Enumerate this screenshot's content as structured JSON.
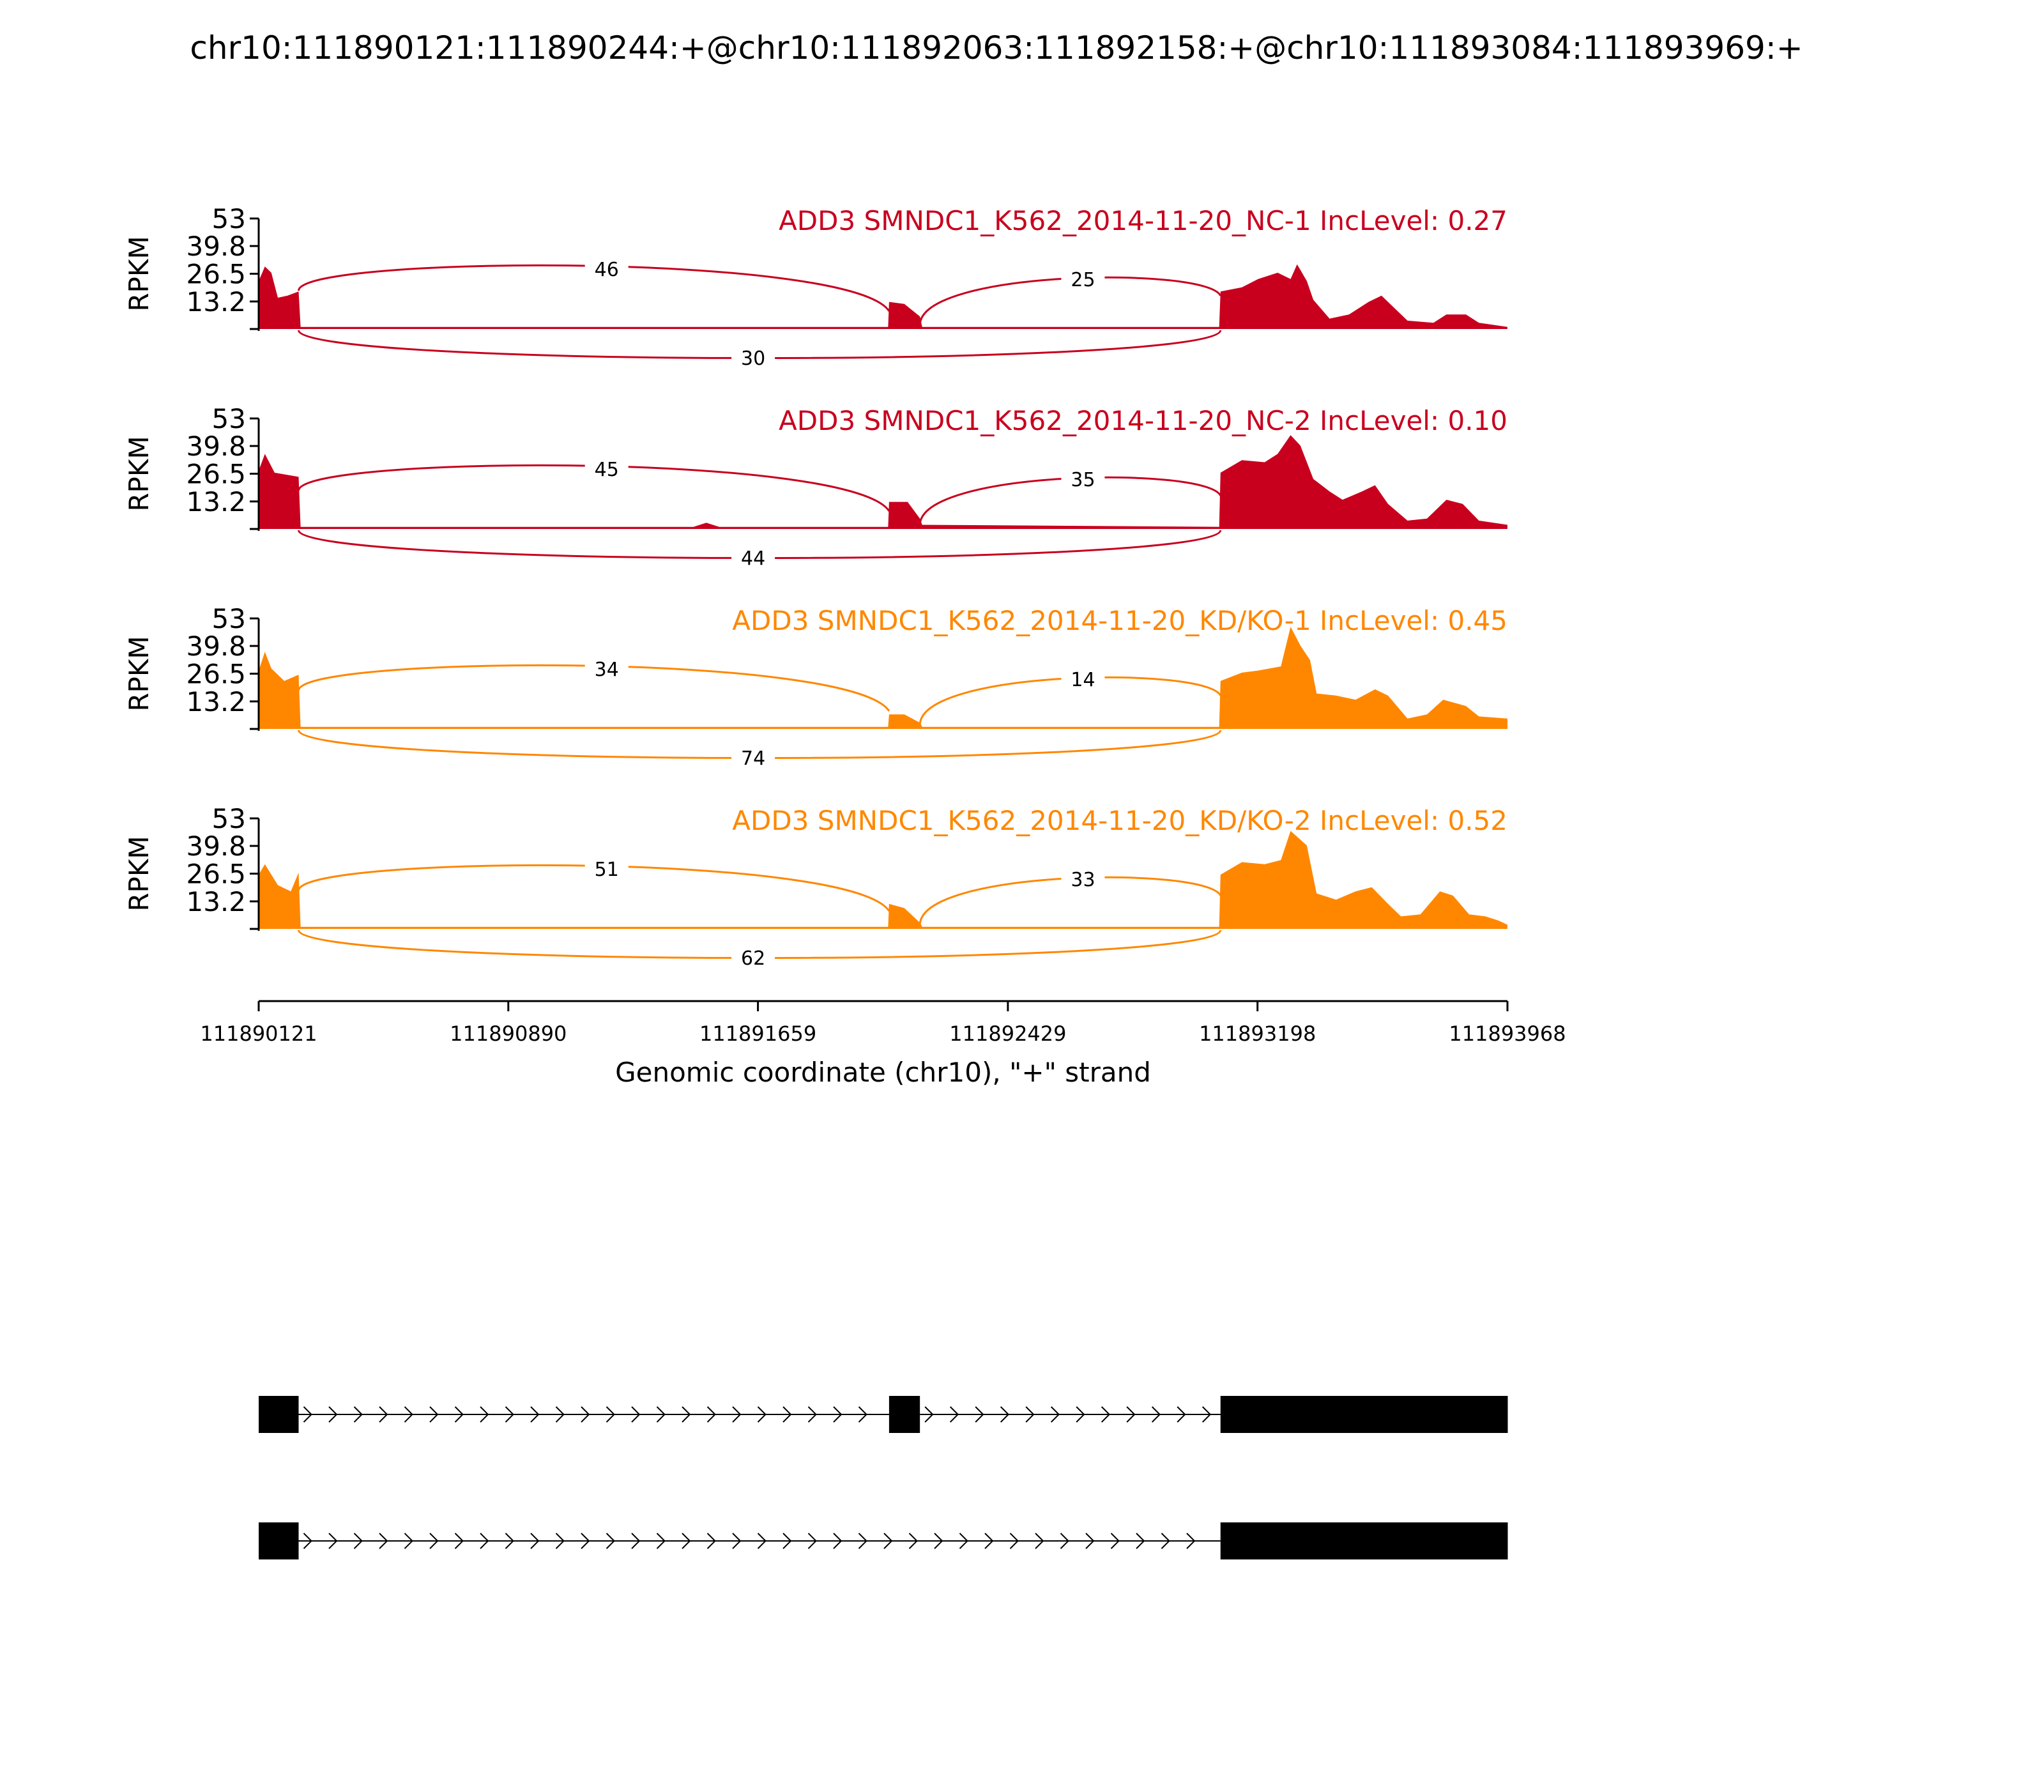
{
  "title": "chr10:111890121:111890244:+@chr10:111892063:111892158:+@chr10:111893084:111893969:+",
  "chart_data": {
    "type": "area",
    "x_axis": {
      "label": "Genomic coordinate (chr10), \"+\" strand",
      "range": [
        111890121,
        111893968
      ],
      "ticks": [
        111890121,
        111890890,
        111891659,
        111892429,
        111893198,
        111893968
      ],
      "tick_labels": [
        "111890121",
        "111890890",
        "111891659",
        "111892429",
        "111893198",
        "111893968"
      ]
    },
    "y_axis": {
      "label": "RPKM",
      "range": [
        0,
        53
      ],
      "ticks": [
        13.2,
        26.5,
        39.8,
        53
      ],
      "tick_labels": [
        "13.2",
        "26.5",
        "39.8",
        "53"
      ]
    },
    "exons": [
      {
        "start": 111890121,
        "end": 111890244
      },
      {
        "start": 111892063,
        "end": 111892158
      },
      {
        "start": 111893084,
        "end": 111893969
      }
    ],
    "panels": [
      {
        "name": "ADD3 SMNDC1_K562_2014-11-20_NC-1 IncLevel: 0.27",
        "color": "#c8001e",
        "junctions": {
          "upstream": "46",
          "downstream": "25",
          "skip": "30"
        },
        "coverage": [
          [
            111890121,
            23
          ],
          [
            111890140,
            30
          ],
          [
            111890160,
            27
          ],
          [
            111890180,
            15
          ],
          [
            111890210,
            16
          ],
          [
            111890244,
            18
          ],
          [
            111890250,
            1
          ],
          [
            111892060,
            1
          ],
          [
            111892063,
            13
          ],
          [
            111892110,
            12
          ],
          [
            111892158,
            6
          ],
          [
            111892165,
            1
          ],
          [
            111893080,
            1
          ],
          [
            111893084,
            18
          ],
          [
            111893150,
            20
          ],
          [
            111893200,
            24
          ],
          [
            111893260,
            27
          ],
          [
            111893300,
            24
          ],
          [
            111893320,
            31
          ],
          [
            111893350,
            23
          ],
          [
            111893370,
            14
          ],
          [
            111893420,
            5
          ],
          [
            111893480,
            7
          ],
          [
            111893540,
            13
          ],
          [
            111893580,
            16
          ],
          [
            111893620,
            10
          ],
          [
            111893660,
            4
          ],
          [
            111893740,
            3
          ],
          [
            111893780,
            7
          ],
          [
            111893840,
            7
          ],
          [
            111893880,
            3
          ],
          [
            111893968,
            1
          ]
        ]
      },
      {
        "name": "ADD3 SMNDC1_K562_2014-11-20_NC-2 IncLevel: 0.10",
        "color": "#c8001e",
        "junctions": {
          "upstream": "45",
          "downstream": "35",
          "skip": "44"
        },
        "coverage": [
          [
            111890121,
            28
          ],
          [
            111890140,
            36
          ],
          [
            111890170,
            27
          ],
          [
            111890244,
            25
          ],
          [
            111890250,
            1
          ],
          [
            111891460,
            1
          ],
          [
            111891500,
            3
          ],
          [
            111891540,
            1
          ],
          [
            111892060,
            1
          ],
          [
            111892063,
            13
          ],
          [
            111892120,
            13
          ],
          [
            111892158,
            5
          ],
          [
            111892165,
            2
          ],
          [
            111893080,
            1
          ],
          [
            111893084,
            27
          ],
          [
            111893150,
            33
          ],
          [
            111893220,
            32
          ],
          [
            111893260,
            36
          ],
          [
            111893300,
            45
          ],
          [
            111893330,
            40
          ],
          [
            111893370,
            24
          ],
          [
            111893420,
            18
          ],
          [
            111893460,
            14
          ],
          [
            111893520,
            18
          ],
          [
            111893560,
            21
          ],
          [
            111893600,
            12
          ],
          [
            111893660,
            4
          ],
          [
            111893720,
            5
          ],
          [
            111893780,
            14
          ],
          [
            111893830,
            12
          ],
          [
            111893880,
            4
          ],
          [
            111893968,
            2
          ]
        ]
      },
      {
        "name": "ADD3 SMNDC1_K562_2014-11-20_KD/KO-1 IncLevel: 0.45",
        "color": "#ff8700",
        "junctions": {
          "upstream": "34",
          "downstream": "14",
          "skip": "74"
        },
        "coverage": [
          [
            111890121,
            28
          ],
          [
            111890140,
            37
          ],
          [
            111890160,
            29
          ],
          [
            111890200,
            23
          ],
          [
            111890244,
            26
          ],
          [
            111890250,
            1
          ],
          [
            111892060,
            1
          ],
          [
            111892063,
            7
          ],
          [
            111892110,
            7
          ],
          [
            111892158,
            3
          ],
          [
            111892165,
            1
          ],
          [
            111893080,
            1
          ],
          [
            111893084,
            23
          ],
          [
            111893150,
            27
          ],
          [
            111893200,
            28
          ],
          [
            111893270,
            30
          ],
          [
            111893300,
            49
          ],
          [
            111893330,
            40
          ],
          [
            111893360,
            33
          ],
          [
            111893380,
            17
          ],
          [
            111893440,
            16
          ],
          [
            111893500,
            14
          ],
          [
            111893560,
            19
          ],
          [
            111893600,
            16
          ],
          [
            111893660,
            5
          ],
          [
            111893720,
            7
          ],
          [
            111893770,
            14
          ],
          [
            111893840,
            11
          ],
          [
            111893880,
            6
          ],
          [
            111893968,
            5
          ]
        ]
      },
      {
        "name": "ADD3 SMNDC1_K562_2014-11-20_KD/KO-2 IncLevel: 0.52",
        "color": "#ff8700",
        "junctions": {
          "upstream": "51",
          "downstream": "33",
          "skip": "62"
        },
        "coverage": [
          [
            111890121,
            26
          ],
          [
            111890140,
            31
          ],
          [
            111890180,
            21
          ],
          [
            111890220,
            18
          ],
          [
            111890244,
            27
          ],
          [
            111890250,
            1
          ],
          [
            111892060,
            1
          ],
          [
            111892063,
            12
          ],
          [
            111892110,
            10
          ],
          [
            111892158,
            3
          ],
          [
            111892165,
            1
          ],
          [
            111893080,
            1
          ],
          [
            111893084,
            26
          ],
          [
            111893150,
            32
          ],
          [
            111893220,
            31
          ],
          [
            111893270,
            33
          ],
          [
            111893300,
            47
          ],
          [
            111893350,
            40
          ],
          [
            111893380,
            17
          ],
          [
            111893440,
            14
          ],
          [
            111893500,
            18
          ],
          [
            111893550,
            20
          ],
          [
            111893600,
            12
          ],
          [
            111893640,
            6
          ],
          [
            111893700,
            7
          ],
          [
            111893760,
            18
          ],
          [
            111893800,
            16
          ],
          [
            111893850,
            7
          ],
          [
            111893900,
            6
          ],
          [
            111893940,
            4
          ],
          [
            111893968,
            2
          ]
        ]
      }
    ],
    "isoforms": [
      {
        "exons": [
          [
            111890121,
            111890244
          ],
          [
            111892063,
            111892158
          ],
          [
            111893084,
            111893969
          ]
        ]
      },
      {
        "exons": [
          [
            111890121,
            111890244
          ],
          [
            111893084,
            111893969
          ]
        ]
      }
    ],
    "grid": false,
    "legend": "none"
  }
}
